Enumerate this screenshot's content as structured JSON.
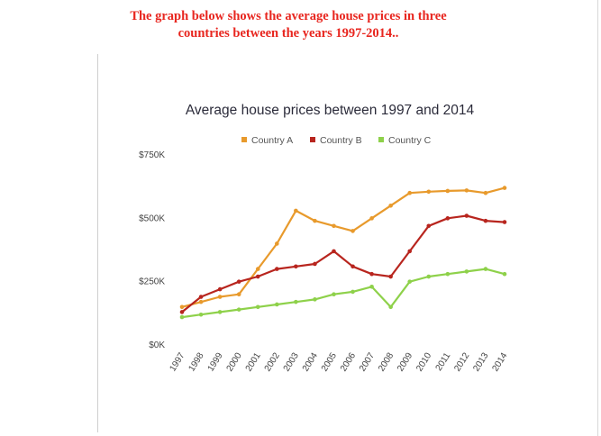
{
  "caption": {
    "line1": "The graph  below shows the average house prices in three",
    "line2": "countries between the years 1997-2014.."
  },
  "chart_data": {
    "type": "line",
    "title": "Average house prices between 1997 and 2014",
    "xlabel": "",
    "ylabel": "",
    "x": [
      "1997",
      "1998",
      "1999",
      "2000",
      "2001",
      "2002",
      "2003",
      "2004",
      "2005",
      "2006",
      "2007",
      "2008",
      "2009",
      "2010",
      "2011",
      "2012",
      "2013",
      "2014"
    ],
    "ylim": [
      0,
      750
    ],
    "yticks": [
      0,
      250,
      500,
      750
    ],
    "ytick_labels": [
      "$0K",
      "$250K",
      "$500K",
      "$750K"
    ],
    "legend_position": "top-center",
    "series": [
      {
        "name": "Country A",
        "color": "#e89a2c",
        "values": [
          150,
          170,
          190,
          200,
          300,
          400,
          530,
          490,
          470,
          450,
          500,
          550,
          600,
          605,
          608,
          610,
          600,
          620
        ]
      },
      {
        "name": "Country B",
        "color": "#b8251e",
        "values": [
          130,
          190,
          220,
          250,
          270,
          300,
          310,
          320,
          370,
          310,
          280,
          270,
          370,
          470,
          500,
          510,
          490,
          485
        ]
      },
      {
        "name": "Country C",
        "color": "#8ed14a",
        "values": [
          110,
          120,
          130,
          140,
          150,
          160,
          170,
          180,
          200,
          210,
          230,
          150,
          250,
          270,
          280,
          290,
          300,
          280
        ]
      }
    ]
  }
}
